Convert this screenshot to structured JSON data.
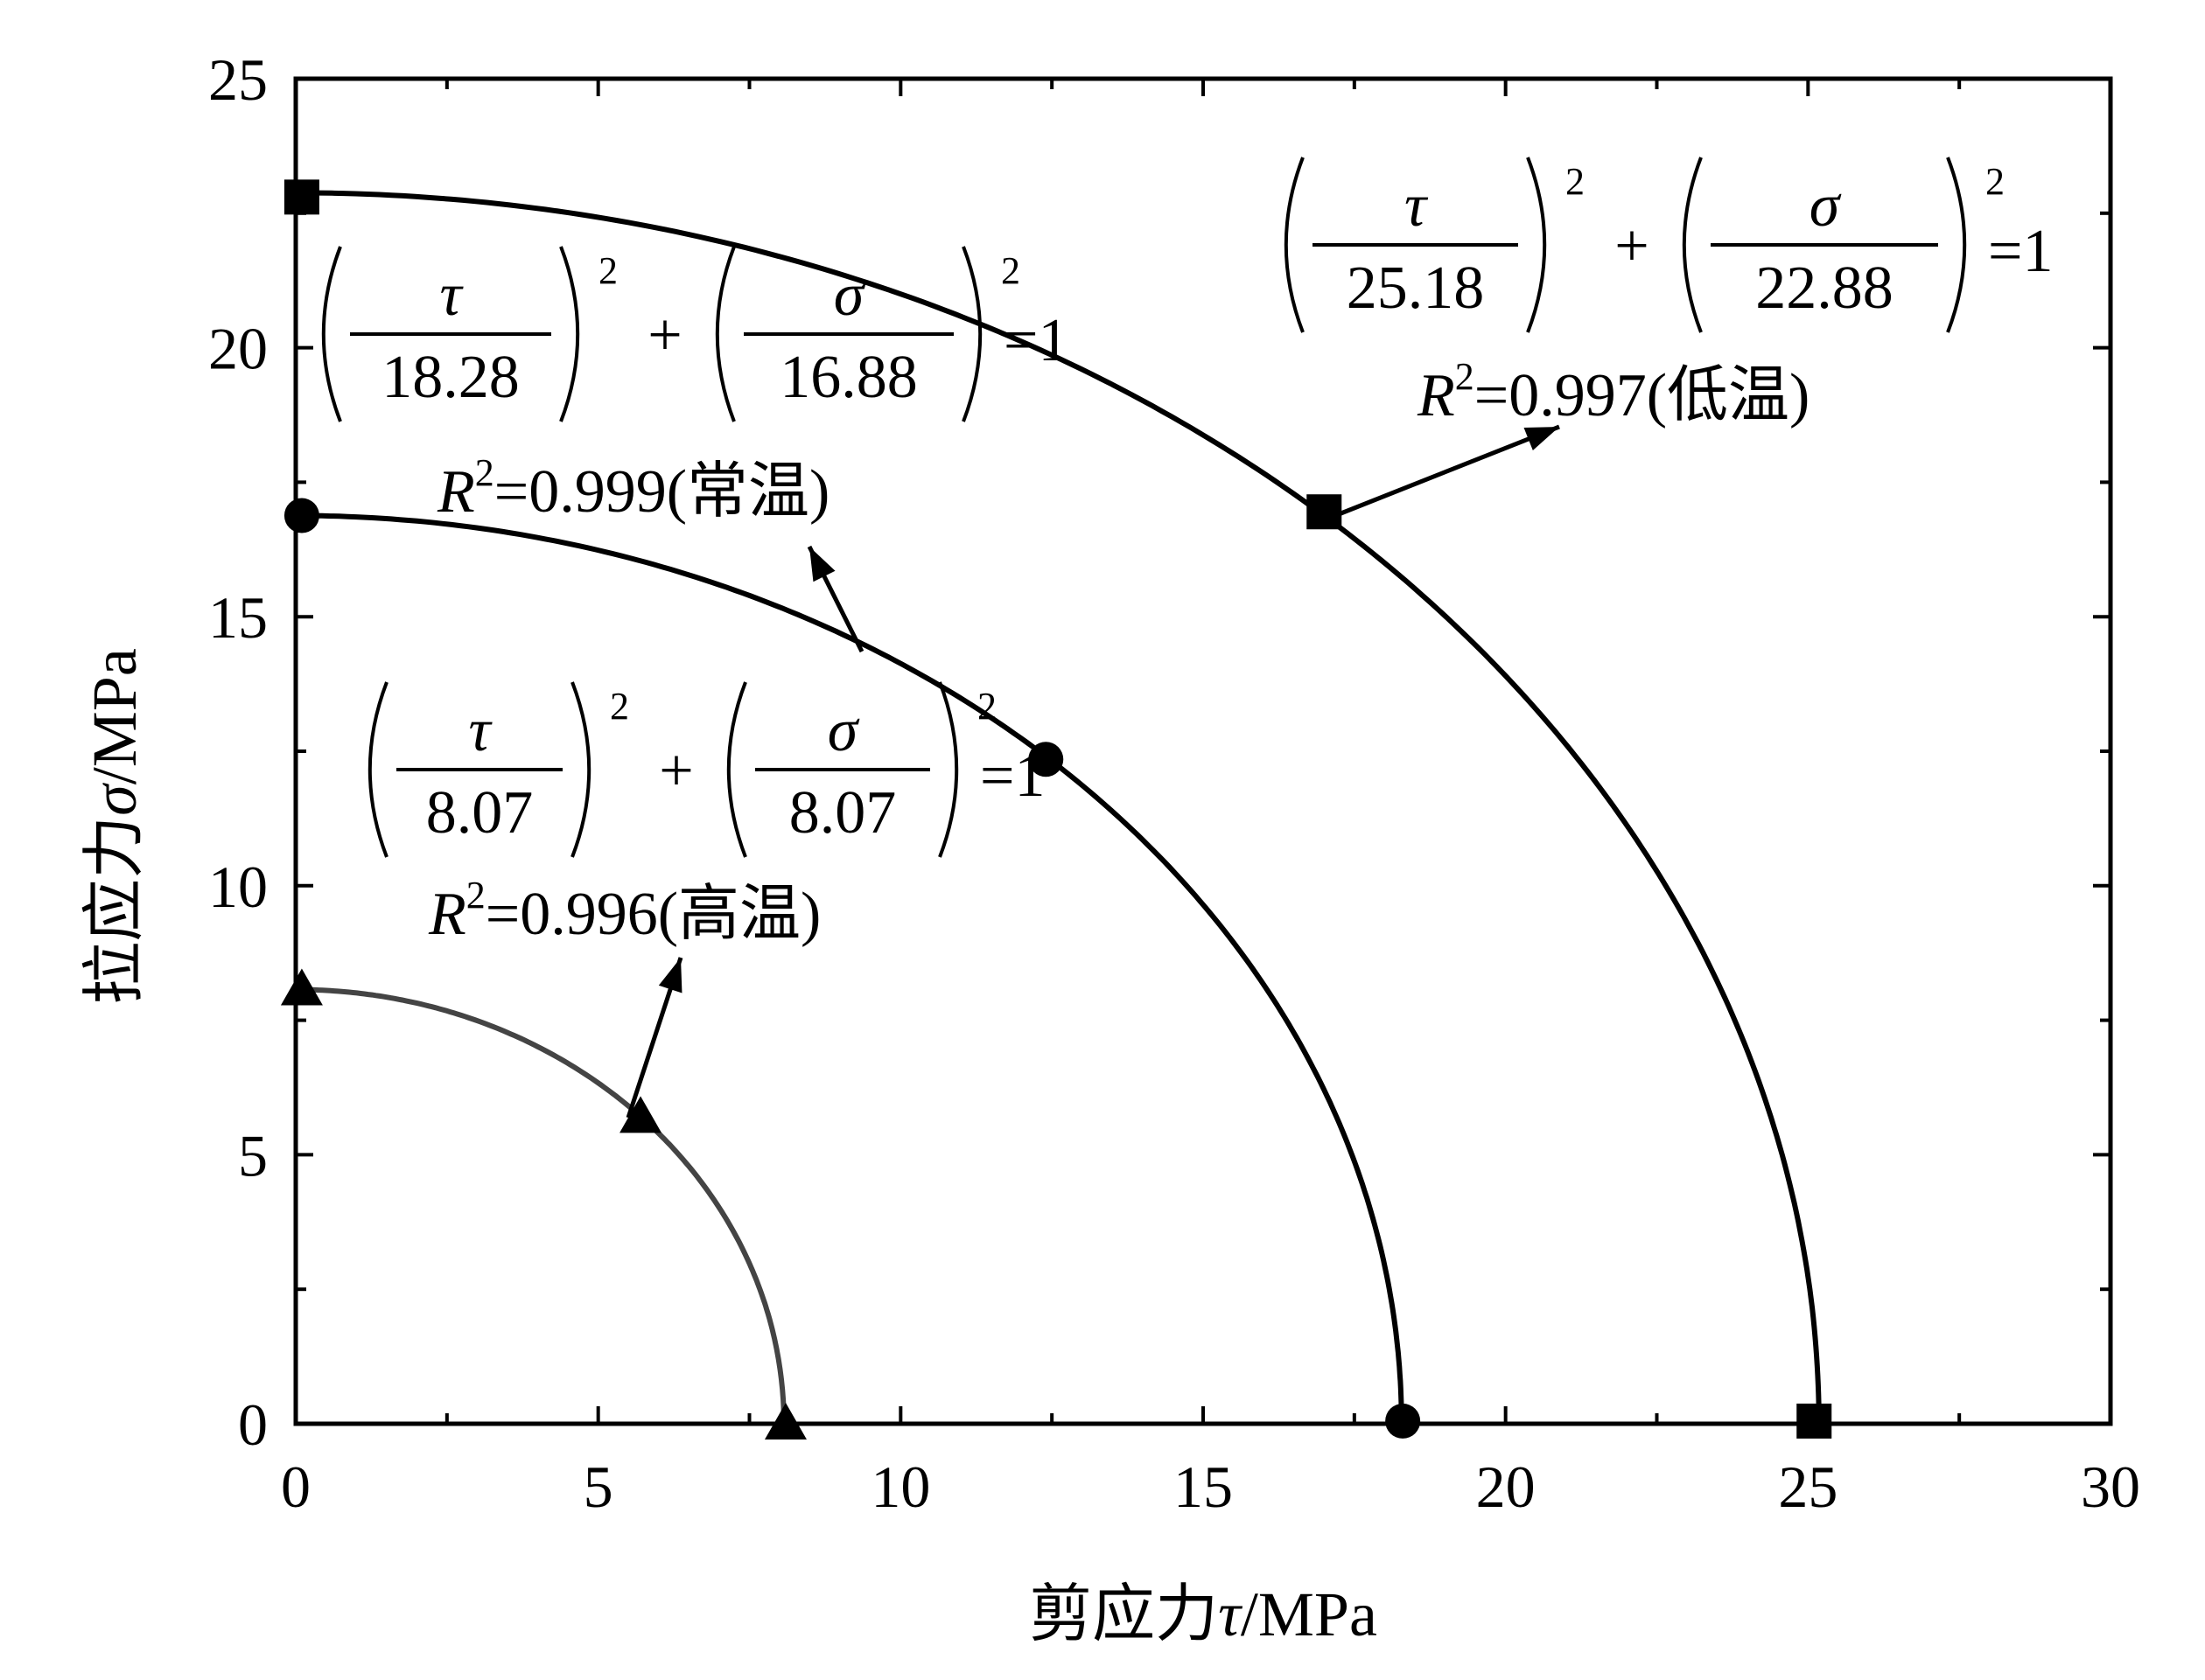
{
  "chart_data": {
    "type": "line",
    "xlabel_prefix": "剪应力",
    "xlabel_symbol": "τ",
    "xlabel_unit": "/MPa",
    "ylabel_prefix": "拉应力",
    "ylabel_symbol": "σ",
    "ylabel_unit": "/MPa",
    "xlim": [
      0,
      30
    ],
    "ylim": [
      0,
      25
    ],
    "x_ticks": [
      "0",
      "5",
      "10",
      "15",
      "20",
      "25",
      "30"
    ],
    "y_ticks": [
      "0",
      "5",
      "10",
      "15",
      "20",
      "25"
    ],
    "grid": false,
    "series": [
      {
        "name": "低温",
        "marker": "square",
        "color": "#000000",
        "a": 25.18,
        "b": 22.88,
        "points": [
          [
            0.1,
            22.8
          ],
          [
            17.0,
            16.95
          ],
          [
            25.1,
            0.05
          ]
        ],
        "equation": {
          "den_tau": "25.18",
          "den_sigma": "22.88",
          "r2": "=0.997(低温)"
        }
      },
      {
        "name": "常温",
        "marker": "circle",
        "color": "#000000",
        "a": 18.28,
        "b": 16.88,
        "points": [
          [
            0.1,
            16.88
          ],
          [
            12.4,
            12.35
          ],
          [
            18.3,
            0.05
          ]
        ],
        "equation": {
          "den_tau": "18.28",
          "den_sigma": "16.88",
          "r2": "=0.999(常温)"
        }
      },
      {
        "name": "高温",
        "marker": "triangle",
        "color": "#444444",
        "a": 8.07,
        "b": 8.07,
        "points": [
          [
            0.1,
            8.07
          ],
          [
            5.7,
            5.7
          ],
          [
            8.1,
            0.0
          ]
        ],
        "equation": {
          "den_tau": "8.07",
          "den_sigma": "8.07",
          "r2": "=0.996(高温)"
        }
      }
    ],
    "equation_symbols": {
      "tau": "τ",
      "sigma": "σ",
      "power": "2",
      "plus": "+",
      "equals": "=1",
      "r": "R"
    }
  }
}
